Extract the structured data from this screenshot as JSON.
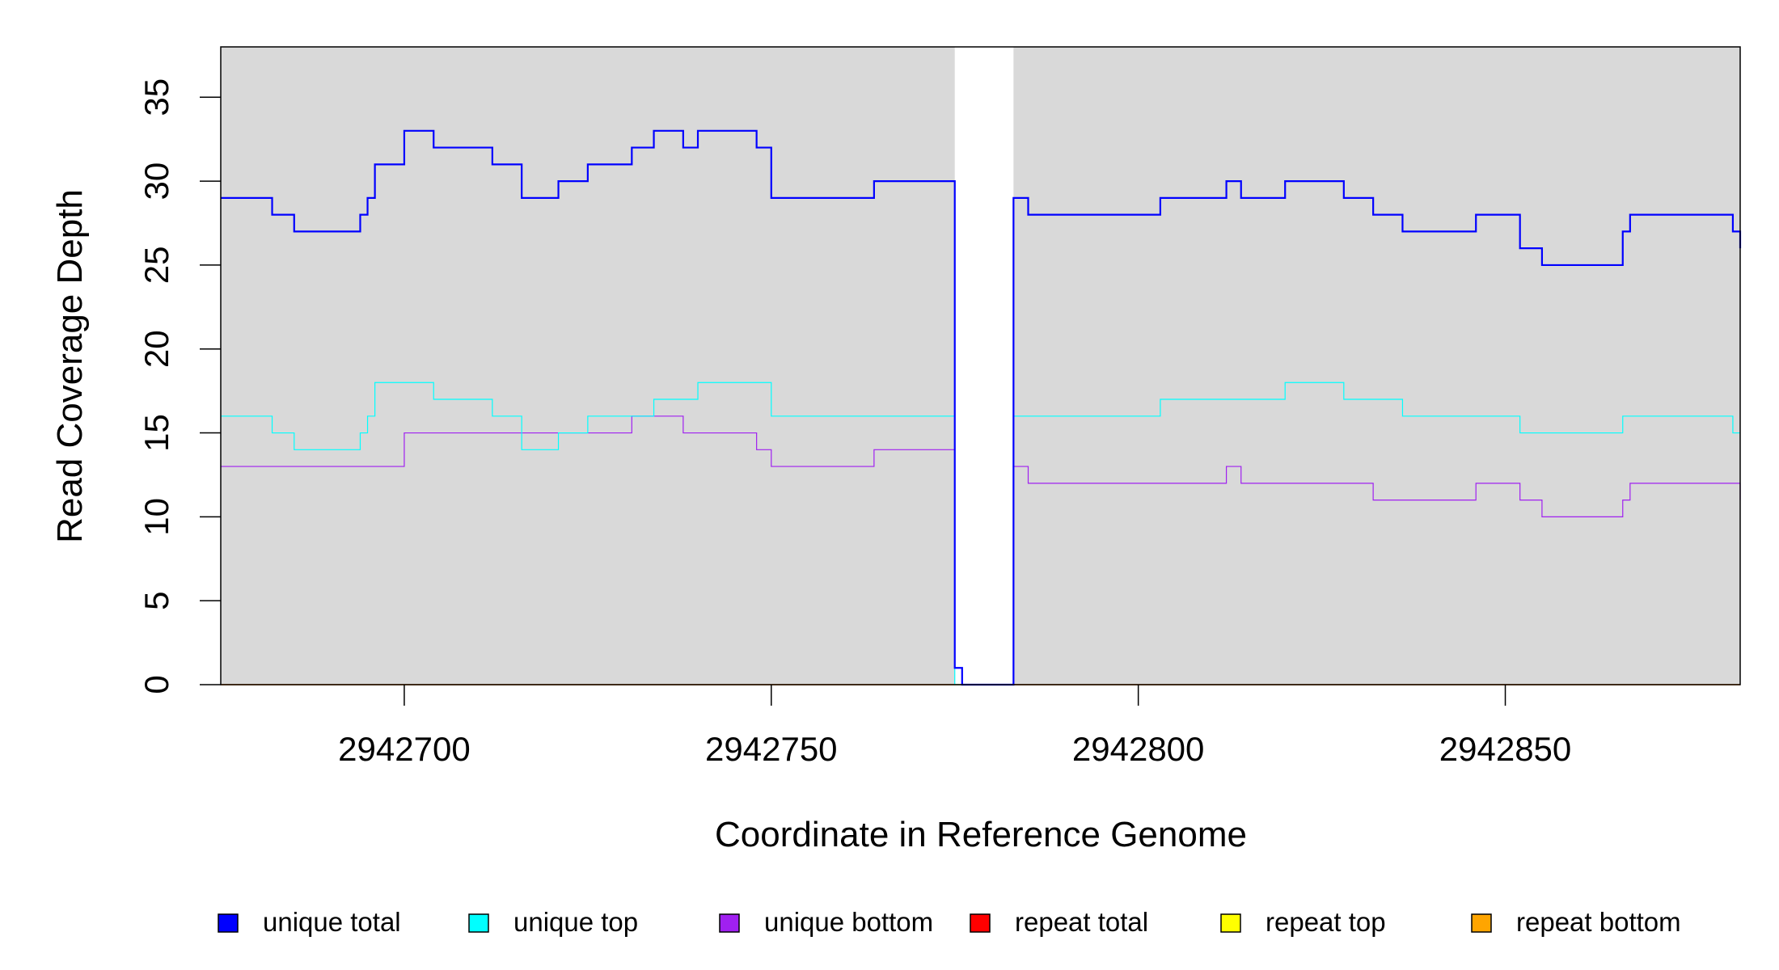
{
  "chart_data": {
    "type": "line",
    "step": true,
    "title": "",
    "xlabel": "Coordinate in Reference Genome",
    "ylabel": "Read Coverage Depth",
    "xlim": [
      2942675,
      2942882
    ],
    "ylim": [
      0,
      38
    ],
    "xticks": [
      2942700,
      2942750,
      2942800,
      2942850
    ],
    "xtick_labels": [
      "2942700",
      "2942750",
      "2942800",
      "2942850"
    ],
    "yticks": [
      0,
      5,
      10,
      15,
      20,
      25,
      30,
      35
    ],
    "ytick_labels": [
      "0",
      "5",
      "10",
      "15",
      "20",
      "25",
      "30",
      "35"
    ],
    "background_color": "#d9d9d9",
    "gap_region": [
      2942775,
      2942783
    ],
    "legend_position": "bottom",
    "series": [
      {
        "name": "unique total",
        "color": "#0000ff",
        "width": 2.2,
        "points": [
          [
            2942675,
            29
          ],
          [
            2942682,
            28
          ],
          [
            2942685,
            27
          ],
          [
            2942694,
            28
          ],
          [
            2942695,
            29
          ],
          [
            2942696,
            31
          ],
          [
            2942700,
            33
          ],
          [
            2942704,
            32
          ],
          [
            2942712,
            31
          ],
          [
            2942716,
            29
          ],
          [
            2942721,
            30
          ],
          [
            2942725,
            31
          ],
          [
            2942731,
            32
          ],
          [
            2942734,
            33
          ],
          [
            2942738,
            32
          ],
          [
            2942740,
            33
          ],
          [
            2942748,
            32
          ],
          [
            2942750,
            29
          ],
          [
            2942764,
            30
          ],
          [
            2942775,
            1
          ],
          [
            2942776,
            0
          ],
          [
            2942783,
            29
          ],
          [
            2942785,
            28
          ],
          [
            2942803,
            29
          ],
          [
            2942812,
            30
          ],
          [
            2942814,
            29
          ],
          [
            2942820,
            30
          ],
          [
            2942828,
            29
          ],
          [
            2942832,
            28
          ],
          [
            2942836,
            27
          ],
          [
            2942846,
            28
          ],
          [
            2942852,
            26
          ],
          [
            2942855,
            25
          ],
          [
            2942866,
            27
          ],
          [
            2942867,
            28
          ],
          [
            2942881,
            27
          ],
          [
            2942882,
            26
          ]
        ]
      },
      {
        "name": "unique top",
        "color": "#00ffff",
        "width": 1.2,
        "points": [
          [
            2942675,
            16
          ],
          [
            2942682,
            15
          ],
          [
            2942685,
            14
          ],
          [
            2942694,
            15
          ],
          [
            2942695,
            16
          ],
          [
            2942696,
            18
          ],
          [
            2942704,
            17
          ],
          [
            2942712,
            16
          ],
          [
            2942716,
            14
          ],
          [
            2942721,
            15
          ],
          [
            2942725,
            16
          ],
          [
            2942731,
            16
          ],
          [
            2942734,
            17
          ],
          [
            2942740,
            18
          ],
          [
            2942750,
            16
          ],
          [
            2942775,
            0
          ],
          [
            2942783,
            16
          ],
          [
            2942803,
            17
          ],
          [
            2942820,
            18
          ],
          [
            2942828,
            17
          ],
          [
            2942836,
            16
          ],
          [
            2942852,
            15
          ],
          [
            2942866,
            16
          ],
          [
            2942881,
            15
          ],
          [
            2942882,
            15
          ]
        ]
      },
      {
        "name": "unique bottom",
        "color": "#a020f0",
        "width": 1.2,
        "points": [
          [
            2942675,
            13
          ],
          [
            2942700,
            15
          ],
          [
            2942731,
            16
          ],
          [
            2942738,
            15
          ],
          [
            2942748,
            14
          ],
          [
            2942750,
            13
          ],
          [
            2942764,
            14
          ],
          [
            2942775,
            1
          ],
          [
            2942776,
            0
          ],
          [
            2942783,
            13
          ],
          [
            2942785,
            12
          ],
          [
            2942812,
            13
          ],
          [
            2942814,
            12
          ],
          [
            2942832,
            11
          ],
          [
            2942846,
            12
          ],
          [
            2942852,
            11
          ],
          [
            2942855,
            10
          ],
          [
            2942866,
            11
          ],
          [
            2942867,
            12
          ],
          [
            2942882,
            11
          ]
        ]
      },
      {
        "name": "repeat total",
        "color": "#ff0000",
        "width": 1.2,
        "points": [
          [
            2942675,
            0
          ],
          [
            2942882,
            0
          ]
        ]
      },
      {
        "name": "repeat top",
        "color": "#ffff00",
        "width": 1.2,
        "points": [
          [
            2942675,
            0
          ],
          [
            2942882,
            0
          ]
        ]
      },
      {
        "name": "repeat bottom",
        "color": "#ffa500",
        "width": 1.2,
        "points": [
          [
            2942675,
            0
          ],
          [
            2942882,
            0
          ]
        ]
      }
    ]
  }
}
